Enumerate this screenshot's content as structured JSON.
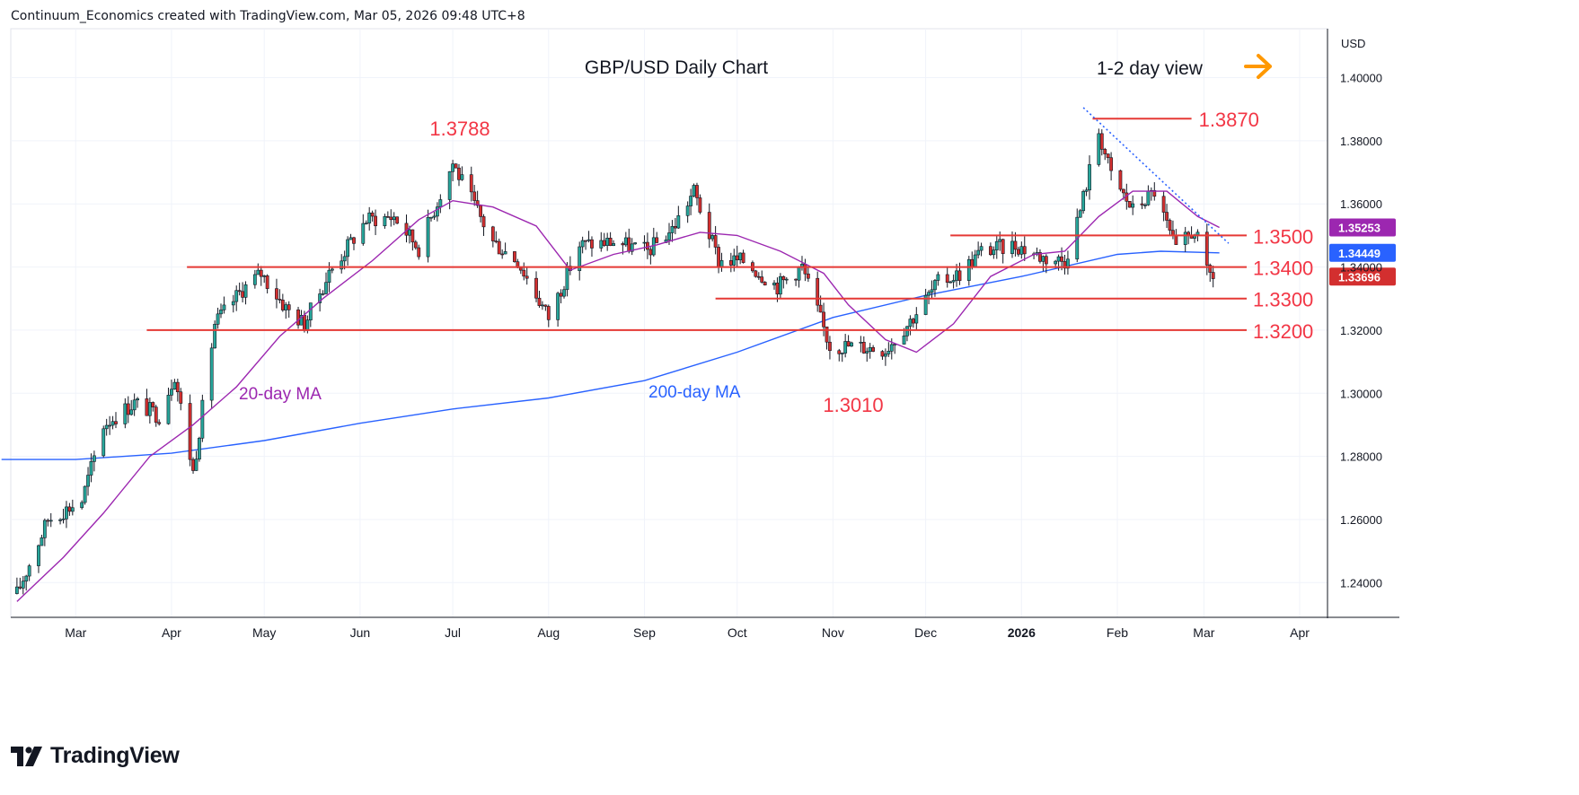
{
  "header": {
    "text": "Continuum_Economics created with TradingView.com, Mar 05, 2026 09:48 UTC+8"
  },
  "footer": {
    "brand": "TradingView"
  },
  "colors": {
    "up": "#26a69a",
    "down": "#d32f2f",
    "ma20": "#9c27b0",
    "ma200": "#2962ff",
    "level": "#e53935",
    "annot": "#f23645",
    "arrow": "#ff9800",
    "trend": "#2962ff",
    "grid": "#f0f3fa"
  },
  "chart_data": {
    "type": "candlestick",
    "title": "GBP/USD Daily Chart",
    "view_label": "1-2 day view",
    "arrow_icon": "right-arrow-icon",
    "currency": "USD",
    "y_axis": {
      "ticks": [
        "1.40000",
        "1.38000",
        "1.36000",
        "1.34000",
        "1.32000",
        "1.30000",
        "1.28000",
        "1.26000",
        "1.24000"
      ],
      "range": [
        1.229,
        1.4155
      ]
    },
    "x_axis": {
      "labels": [
        "Mar",
        "Apr",
        "May",
        "Jun",
        "Jul",
        "Aug",
        "Sep",
        "Oct",
        "Nov",
        "Dec",
        "2026",
        "Feb",
        "Mar",
        "Apr"
      ],
      "range": [
        "2025-02-08",
        "2026-04-10"
      ]
    },
    "annotations": {
      "high_1": "1.3788",
      "high_2": "1.3870",
      "low_1": "1.3010",
      "ma20_label": "20-day MA",
      "ma200_label": "200-day MA"
    },
    "levels": [
      {
        "label": "1.3500",
        "value": 1.35,
        "start": "2025-12-09"
      },
      {
        "label": "1.3400",
        "value": 1.34,
        "start": "2025-04-06"
      },
      {
        "label": "1.3300",
        "value": 1.33,
        "start": "2025-09-24"
      },
      {
        "label": "1.3200",
        "value": 1.32,
        "start": "2025-03-24"
      },
      {
        "label": "1.3870",
        "value": 1.387,
        "start": "2026-01-24",
        "end": "2026-02-25"
      }
    ],
    "price_tags": [
      {
        "label": "1.35253",
        "value": 1.35253,
        "color": "#9c27b0"
      },
      {
        "label": "1.34449",
        "value": 1.34449,
        "color": "#2962ff"
      },
      {
        "label": "1.33696",
        "value": 1.33696,
        "color": "#d32f2f"
      }
    ],
    "trendline": {
      "from": [
        "2026-01-21",
        1.3905
      ],
      "to": [
        "2026-03-09",
        1.3475
      ]
    },
    "ma20_points": [
      [
        "2025-02-10",
        1.234
      ],
      [
        "2025-02-25",
        1.248
      ],
      [
        "2025-03-10",
        1.262
      ],
      [
        "2025-03-25",
        1.28
      ],
      [
        "2025-04-08",
        1.29
      ],
      [
        "2025-04-22",
        1.302
      ],
      [
        "2025-05-06",
        1.318
      ],
      [
        "2025-05-20",
        1.33
      ],
      [
        "2025-06-05",
        1.342
      ],
      [
        "2025-06-20",
        1.355
      ],
      [
        "2025-07-01",
        1.361
      ],
      [
        "2025-07-14",
        1.359
      ],
      [
        "2025-07-28",
        1.353
      ],
      [
        "2025-08-08",
        1.339
      ],
      [
        "2025-08-22",
        1.344
      ],
      [
        "2025-09-05",
        1.347
      ],
      [
        "2025-09-19",
        1.351
      ],
      [
        "2025-10-01",
        1.35
      ],
      [
        "2025-10-15",
        1.345
      ],
      [
        "2025-10-29",
        1.338
      ],
      [
        "2025-11-06",
        1.328
      ],
      [
        "2025-11-18",
        1.317
      ],
      [
        "2025-11-28",
        1.313
      ],
      [
        "2025-12-10",
        1.322
      ],
      [
        "2025-12-22",
        1.337
      ],
      [
        "2026-01-05",
        1.344
      ],
      [
        "2026-01-15",
        1.345
      ],
      [
        "2026-01-26",
        1.356
      ],
      [
        "2026-02-06",
        1.364
      ],
      [
        "2026-02-17",
        1.364
      ],
      [
        "2026-02-27",
        1.356
      ],
      [
        "2026-03-06",
        1.35253
      ]
    ],
    "ma200_points": [
      [
        "2025-02-05",
        1.279
      ],
      [
        "2025-03-01",
        1.279
      ],
      [
        "2025-04-01",
        1.281
      ],
      [
        "2025-05-01",
        1.285
      ],
      [
        "2025-06-01",
        1.2905
      ],
      [
        "2025-07-01",
        1.295
      ],
      [
        "2025-08-01",
        1.2985
      ],
      [
        "2025-09-01",
        1.304
      ],
      [
        "2025-10-01",
        1.313
      ],
      [
        "2025-11-01",
        1.324
      ],
      [
        "2025-12-01",
        1.331
      ],
      [
        "2026-01-01",
        1.337
      ],
      [
        "2026-02-01",
        1.344
      ],
      [
        "2026-02-15",
        1.345
      ],
      [
        "2026-03-06",
        1.34449
      ]
    ],
    "ohlc_anchors": [
      [
        "2025-02-10",
        1.2365
      ],
      [
        "2025-02-20",
        1.26
      ],
      [
        "2025-03-03",
        1.266
      ],
      [
        "2025-03-10",
        1.29
      ],
      [
        "2025-03-20",
        1.297
      ],
      [
        "2025-03-28",
        1.293
      ],
      [
        "2025-04-02",
        1.306
      ],
      [
        "2025-04-08",
        1.275
      ],
      [
        "2025-04-15",
        1.322
      ],
      [
        "2025-04-24",
        1.333
      ],
      [
        "2025-04-30",
        1.338
      ],
      [
        "2025-05-08",
        1.327
      ],
      [
        "2025-05-14",
        1.322
      ],
      [
        "2025-05-22",
        1.338
      ],
      [
        "2025-06-03",
        1.355
      ],
      [
        "2025-06-12",
        1.356
      ],
      [
        "2025-06-20",
        1.346
      ],
      [
        "2025-07-01",
        1.373
      ],
      [
        "2025-07-04",
        1.367
      ],
      [
        "2025-07-14",
        1.348
      ],
      [
        "2025-07-22",
        1.342
      ],
      [
        "2025-08-01",
        1.324
      ],
      [
        "2025-08-11",
        1.347
      ],
      [
        "2025-08-22",
        1.348
      ],
      [
        "2025-09-02",
        1.345
      ],
      [
        "2025-09-10",
        1.352
      ],
      [
        "2025-09-17",
        1.364
      ],
      [
        "2025-09-25",
        1.342
      ],
      [
        "2025-10-03",
        1.342
      ],
      [
        "2025-10-14",
        1.334
      ],
      [
        "2025-10-22",
        1.34
      ],
      [
        "2025-10-31",
        1.315
      ],
      [
        "2025-11-07",
        1.315
      ],
      [
        "2025-11-18",
        1.314
      ],
      [
        "2025-11-26",
        1.323
      ],
      [
        "2025-12-05",
        1.335
      ],
      [
        "2025-12-12",
        1.338
      ],
      [
        "2025-12-19",
        1.345
      ],
      [
        "2025-12-30",
        1.347
      ],
      [
        "2026-01-08",
        1.343
      ],
      [
        "2026-01-15",
        1.342
      ],
      [
        "2026-01-20",
        1.358
      ],
      [
        "2026-01-26",
        1.383
      ],
      [
        "2026-01-30",
        1.369
      ],
      [
        "2026-02-06",
        1.358
      ],
      [
        "2026-02-13",
        1.364
      ],
      [
        "2026-02-20",
        1.345
      ],
      [
        "2026-02-26",
        1.352
      ],
      [
        "2026-03-02",
        1.338
      ],
      [
        "2026-03-05",
        1.33696
      ]
    ]
  }
}
